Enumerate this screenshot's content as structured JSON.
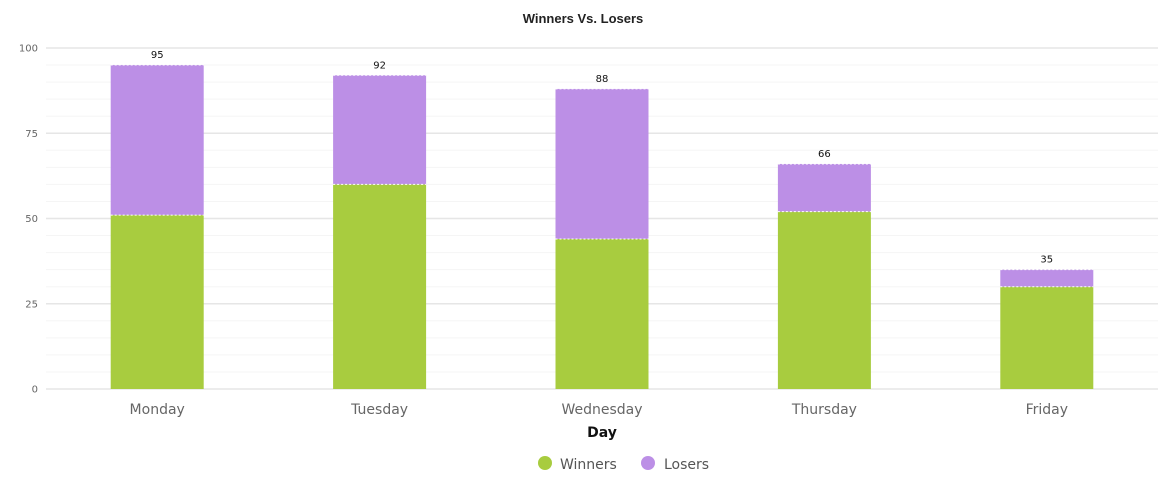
{
  "chart_data": {
    "type": "bar",
    "stacked": true,
    "title": "Winners Vs. Losers",
    "xlabel": "Day",
    "ylabel": "",
    "categories": [
      "Monday",
      "Tuesday",
      "Wednesday",
      "Thursday",
      "Friday"
    ],
    "series": [
      {
        "name": "Winners",
        "values": [
          51,
          60,
          44,
          52,
          30
        ],
        "color": "#a8cc3f"
      },
      {
        "name": "Losers",
        "values": [
          44,
          32,
          44,
          14,
          5
        ],
        "color": "#bc8fe6"
      }
    ],
    "totals": [
      "95",
      "92",
      "88",
      "66",
      "35"
    ],
    "ylim": [
      0,
      100
    ],
    "yticks": [
      0,
      25,
      50,
      75,
      100
    ],
    "ytick_labels": [
      "0",
      "25",
      "50",
      "75",
      "100"
    ],
    "grid": true,
    "legend": {
      "position": "bottom-center"
    }
  }
}
